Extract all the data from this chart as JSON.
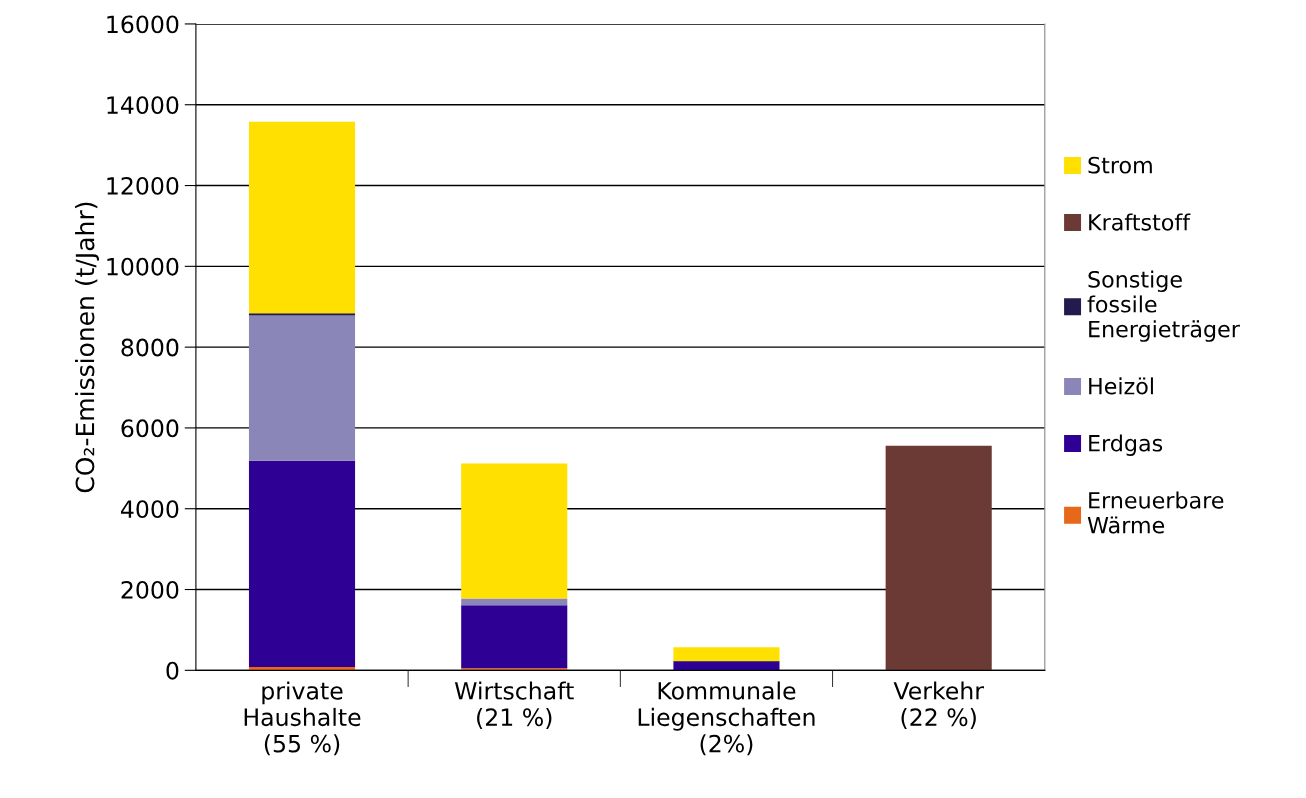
{
  "chart_data": {
    "type": "bar",
    "stacked": true,
    "ylabel": "CO₂-Emissionen (t/Jahr)",
    "categories": [
      "private\nHaushalte\n(55 %)",
      "Wirtschaft\n(21 %)",
      "Kommunale\nLiegenschaften\n(2%)",
      "Verkehr\n(22 %)"
    ],
    "series": [
      {
        "name": "Erneuerbare\nWärme",
        "color": "#e8681a",
        "values": [
          80,
          50,
          null,
          null
        ]
      },
      {
        "name": "Erdgas",
        "color": "#2e0094",
        "values": [
          5110,
          1560,
          210,
          null
        ]
      },
      {
        "name": "Heizöl",
        "color": "#8b86b8",
        "values": [
          3590,
          170,
          null,
          null
        ]
      },
      {
        "name": "Sonstige\nfossile\nEnergieträger",
        "color": "#231b4e",
        "values": [
          60,
          null,
          20,
          null
        ]
      },
      {
        "name": "Kraftstoff",
        "color": "#6b3a35",
        "values": [
          null,
          null,
          null,
          5560
        ]
      },
      {
        "name": "Strom",
        "color": "#ffe000",
        "values": [
          4740,
          3340,
          340,
          null
        ]
      }
    ],
    "ylim": [
      0,
      16000
    ],
    "yticks": [
      0,
      2000,
      4000,
      6000,
      8000,
      10000,
      12000,
      14000,
      16000
    ],
    "grid": "y",
    "legend": "right"
  }
}
